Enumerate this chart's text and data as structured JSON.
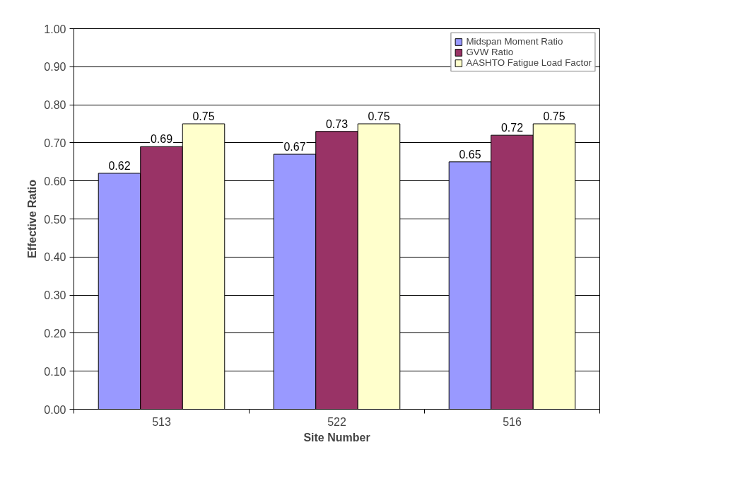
{
  "chart_data": {
    "type": "bar",
    "xlabel": "Site Number",
    "ylabel": "Effective Ratio",
    "categories": [
      "513",
      "522",
      "516"
    ],
    "series": [
      {
        "name": "Midspan Moment Ratio",
        "color": "#9999ff",
        "values": [
          0.62,
          0.67,
          0.65
        ]
      },
      {
        "name": "GVW Ratio",
        "color": "#993366",
        "values": [
          0.69,
          0.73,
          0.72
        ]
      },
      {
        "name": "AASHTO Fatigue Load Factor",
        "color": "#ffffcc",
        "values": [
          0.75,
          0.75,
          0.75
        ]
      }
    ],
    "ylim": [
      0,
      1
    ],
    "yticks": [
      {
        "value": 0,
        "label": "0.00"
      },
      {
        "value": 0.1,
        "label": "0.10"
      },
      {
        "value": 0.2,
        "label": "0.20"
      },
      {
        "value": 0.3,
        "label": "0.30"
      },
      {
        "value": 0.4,
        "label": "0.40"
      },
      {
        "value": 0.5,
        "label": "0.50"
      },
      {
        "value": 0.6,
        "label": "0.60"
      },
      {
        "value": 0.7,
        "label": "0.70"
      },
      {
        "value": 0.8,
        "label": "0.80"
      },
      {
        "value": 0.9,
        "label": "0.90"
      },
      {
        "value": 1,
        "label": "1.00"
      }
    ],
    "grid": "y",
    "legend": "top right",
    "data_labels": true
  }
}
